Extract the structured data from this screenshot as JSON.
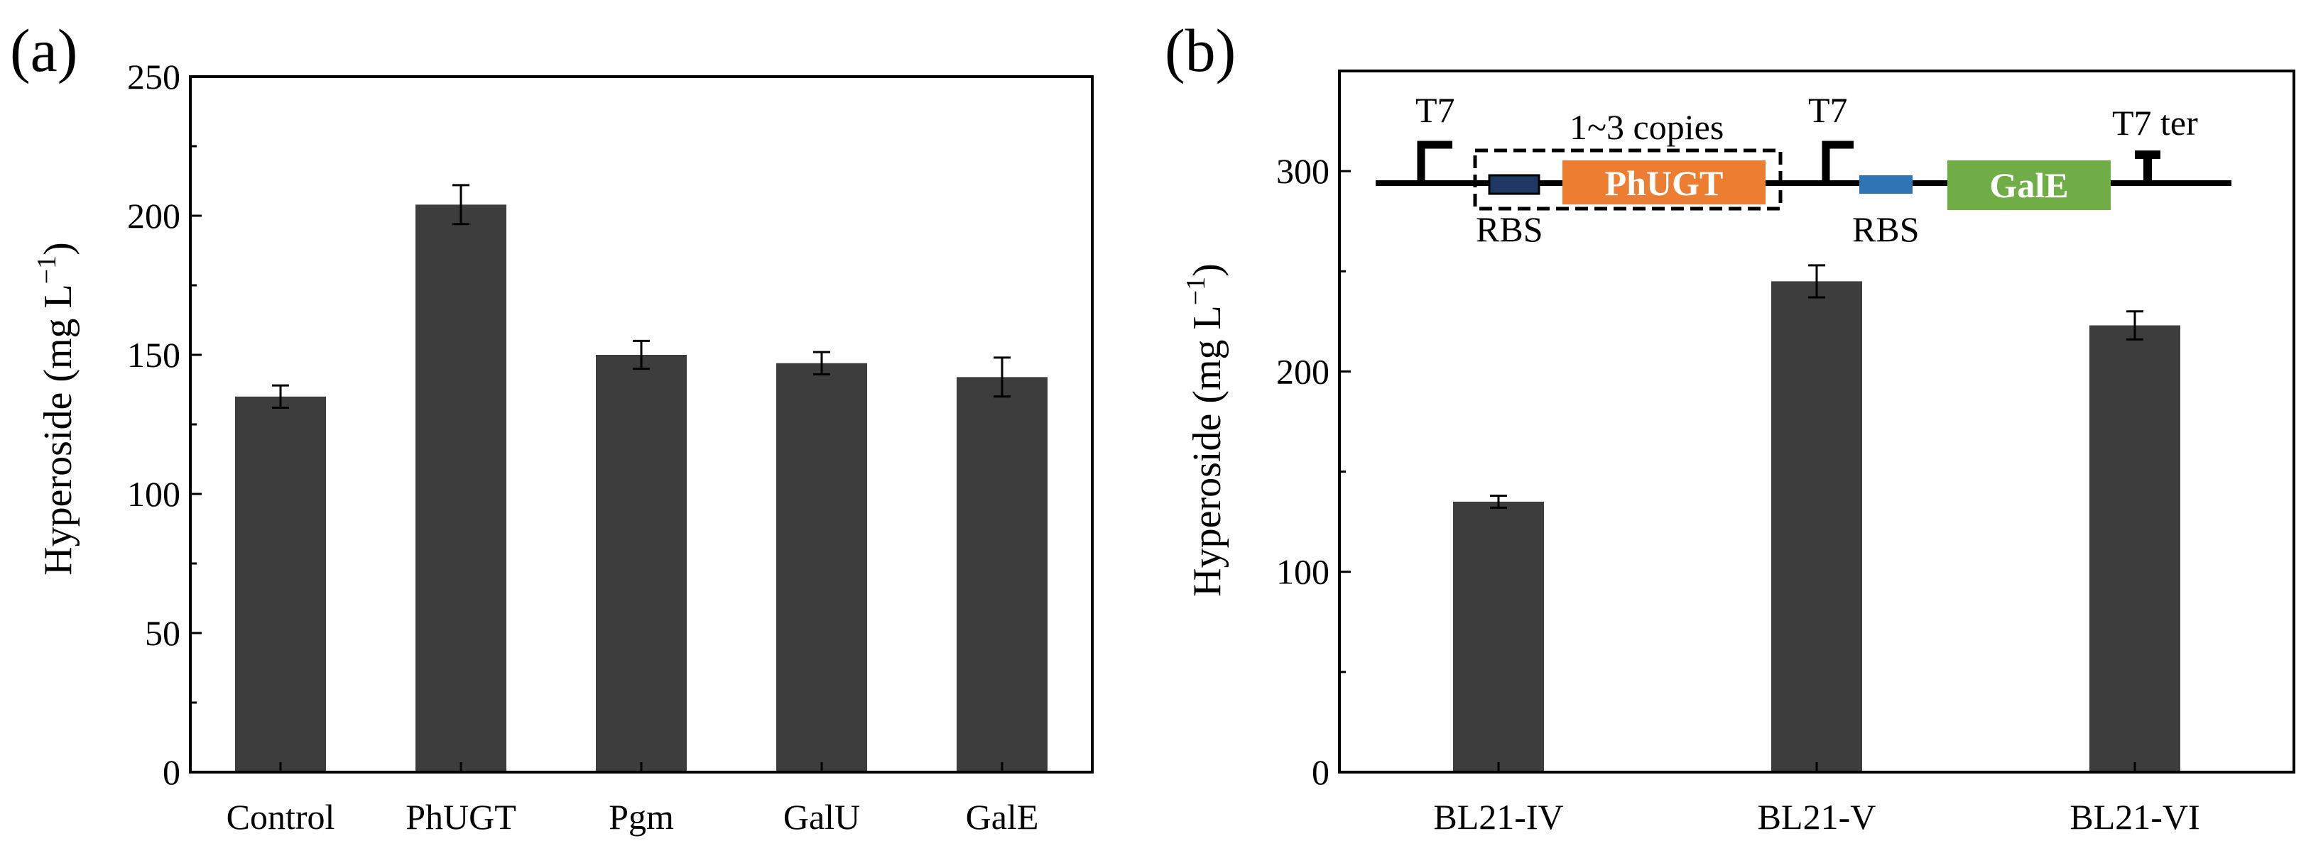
{
  "figure": {
    "panel_a_label": "(a)",
    "panel_b_label": "(b)"
  },
  "colors": {
    "bar": "#3d3d3d",
    "phugt": "#ed7d31",
    "gale": "#70ad47",
    "rbs_dark": "#1f3864",
    "rbs_light": "#2e75b6"
  },
  "chart_data": [
    {
      "type": "bar",
      "panel": "(a)",
      "categories": [
        "Control",
        "PhUGT",
        "Pgm",
        "GalU",
        "GalE"
      ],
      "values": [
        135,
        204,
        150,
        147,
        142
      ],
      "errors": [
        4,
        7,
        5,
        4,
        7
      ],
      "xlabel": "",
      "ylabel_main": "Hyperoside (mg L",
      "ylabel_sup": "−1",
      "ylabel_close": ")",
      "ylim": [
        0,
        250
      ],
      "yticks": [
        0,
        50,
        100,
        150,
        200,
        250
      ],
      "ytick_labels": [
        "0",
        "50",
        "100",
        "150",
        "200",
        "250"
      ],
      "grid": false
    },
    {
      "type": "bar",
      "panel": "(b)",
      "categories": [
        "BL21-IV",
        "BL21-V",
        "BL21-VI"
      ],
      "values": [
        135,
        245,
        223
      ],
      "errors": [
        3,
        8,
        7
      ],
      "xlabel": "",
      "ylabel_main": "Hyperoside (mg L",
      "ylabel_sup": "−1",
      "ylabel_close": ")",
      "ylim": [
        0,
        350
      ],
      "yticks": [
        0,
        100,
        200,
        300
      ],
      "ytick_labels": [
        "0",
        "100",
        "200",
        "300"
      ],
      "grid": false
    }
  ],
  "construct_diagram": {
    "promoter1": "T7",
    "copies": "1~3 copies",
    "rbs1": "RBS",
    "gene1": "PhUGT",
    "promoter2": "T7",
    "rbs2": "RBS",
    "gene2": "GalE",
    "terminator": "T7 ter"
  }
}
